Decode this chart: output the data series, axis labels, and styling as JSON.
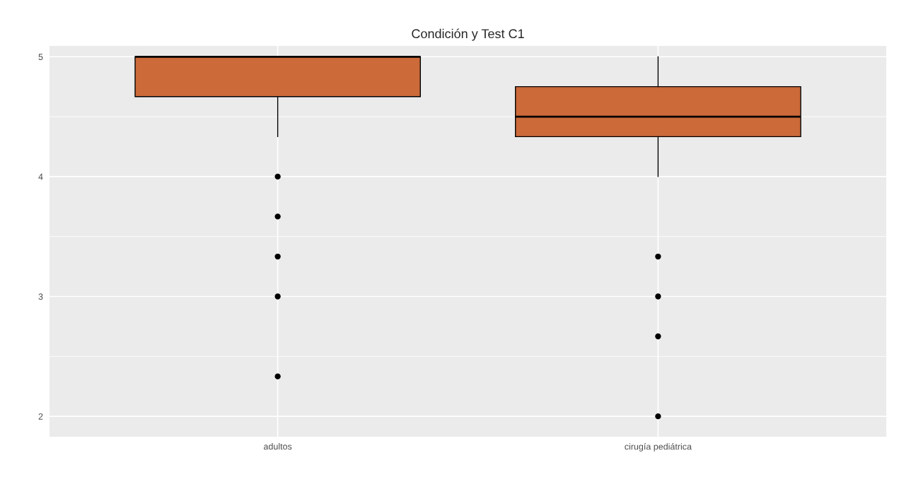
{
  "chart_data": {
    "type": "box",
    "title": "Condición y Test C1",
    "categories": [
      "adultos",
      "cirugía pediátrica"
    ],
    "boxes": [
      {
        "low": 4.333,
        "q1": 4.667,
        "median": 5,
        "q3": 5,
        "high": 5,
        "outliers": [
          4,
          3.667,
          3.333,
          3,
          2.333
        ]
      },
      {
        "low": 4,
        "q1": 4.333,
        "median": 4.5,
        "q3": 4.75,
        "high": 5,
        "outliers": [
          3.333,
          3,
          2.667,
          2
        ]
      }
    ],
    "color": "#cc6a3a",
    "ylim": [
      1.83,
      5.09
    ],
    "yticks": [
      2,
      3,
      4,
      5
    ],
    "grid": true
  }
}
